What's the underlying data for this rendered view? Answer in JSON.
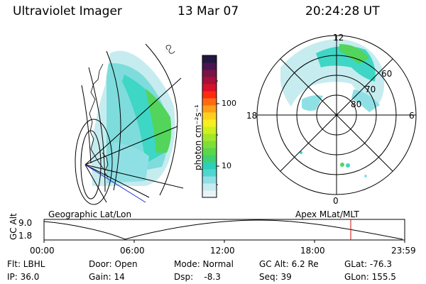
{
  "header": {
    "instrument": "Ultraviolet Imager",
    "date": "13 Mar 07",
    "time": "20:24:28 UT"
  },
  "colorbar": {
    "unit_label": "photon cm⁻²s⁻¹",
    "scale": "log",
    "ticks": [
      "100",
      "10"
    ],
    "colors": [
      "#e8f4f8",
      "#c6ecef",
      "#8fe0e4",
      "#4fd6d0",
      "#2cd0b8",
      "#40d070",
      "#5ad64a",
      "#7ede38",
      "#a6e628",
      "#cfef20",
      "#f6f020",
      "#ffd020",
      "#ffa018",
      "#ff6a10",
      "#ff2a10",
      "#d8102a",
      "#a81038",
      "#781448",
      "#4a1450",
      "#201840"
    ]
  },
  "geo_panel": {
    "label": "Geographic Lat/Lon"
  },
  "polar_panel": {
    "label": "Apex MLat/MLT",
    "mlt_labels": [
      "12",
      "18",
      "6",
      "0"
    ],
    "lat_labels": [
      "60",
      "70",
      "80"
    ]
  },
  "altitude_plot": {
    "axis_label": "GC Alt",
    "y_ticks": [
      "9.0",
      "1.8"
    ],
    "x_ticks": [
      "00:00",
      "06:00",
      "12:00",
      "18:00",
      "23:59"
    ],
    "current_time_marker_hours": 20.41
  },
  "status": {
    "filter_label": "Flt: LBHL",
    "door_label": "Door: Open",
    "mode_label": "Mode: Normal",
    "gcalt_label": "GC Alt: 6.2 Re",
    "glat_label": "GLat: -76.3",
    "ip_label": "IP: 36.0",
    "gain_label": "Gain: 14",
    "dsp_label": "Dsp:    -8.3",
    "seq_label": "Seq: 39",
    "glon_label": "GLon: 155.5"
  }
}
